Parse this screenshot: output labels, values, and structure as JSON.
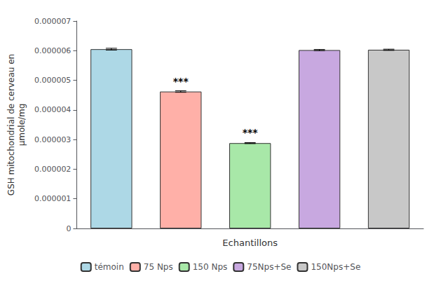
{
  "chart_data": {
    "type": "bar",
    "categories": [
      "témoin",
      "75 Nps",
      "150 Nps",
      "75Nps+Se",
      "150Nps+Se"
    ],
    "values": [
      6.05e-06,
      4.62e-06,
      2.88e-06,
      6.02e-06,
      6.03e-06
    ],
    "errors": [
      3e-08,
      2.5e-08,
      1.5e-08,
      2e-08,
      2e-08
    ],
    "colors": [
      "#add8e6",
      "#ffb0a8",
      "#a8e8a8",
      "#c8a8e0",
      "#c8c8c8"
    ],
    "xlabel": "Echantillons",
    "ylabel": "GSH mitochondrial de cerveau en\nµmole/mg",
    "ylim": [
      0,
      7e-06
    ],
    "yticks": [
      0,
      {
        "value": 1e-06,
        "label": "0.000001"
      },
      {
        "value": 2e-06,
        "label": "0.000002"
      },
      {
        "value": 3e-06,
        "label": "0.000003"
      },
      {
        "value": 4e-06,
        "label": "0.000004"
      },
      {
        "value": 5e-06,
        "label": "0.000005"
      },
      {
        "value": 6e-06,
        "label": "0.000006"
      },
      {
        "value": 7e-06,
        "label": "0.000007"
      }
    ],
    "annotations": [
      {
        "text": "***",
        "category": "75 Nps"
      },
      {
        "text": "***",
        "category": "150 Nps"
      }
    ],
    "tick_labels": "y",
    "legend": "bottom",
    "grid": false
  }
}
